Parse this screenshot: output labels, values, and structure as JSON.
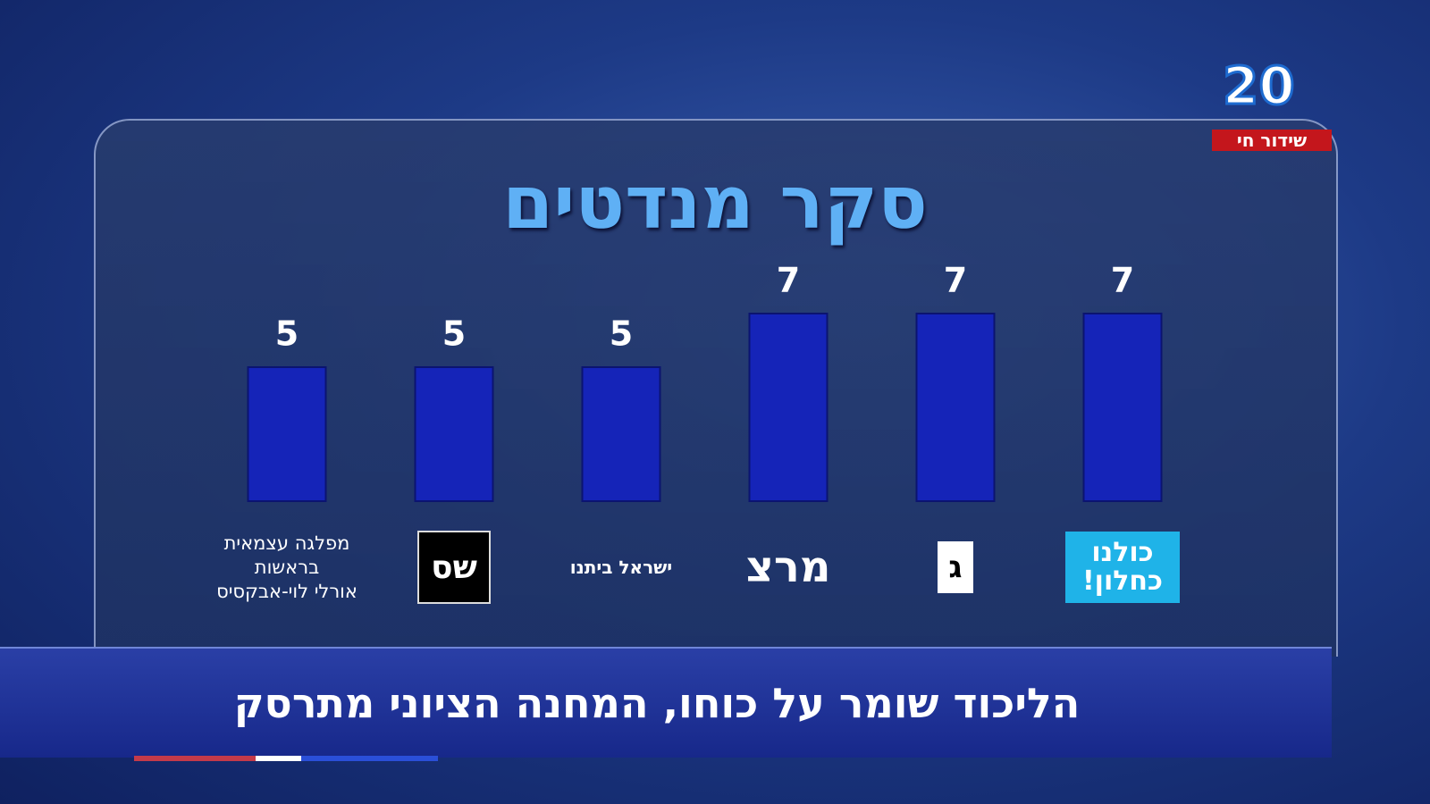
{
  "channel": {
    "logo": "20",
    "live": "שידור חי"
  },
  "chart_data": {
    "type": "bar",
    "title": "סקר מנדטים",
    "categories": [
      "כולנו כחלון!",
      "ג",
      "מרצ",
      "ישראל ביתנו",
      "שס",
      "מפלגה עצמאית\nבראשות\nאורלי לוי-אבקסיס"
    ],
    "values": [
      7,
      7,
      7,
      5,
      5,
      5
    ],
    "color": "#1524b8"
  },
  "ticker": {
    "headline": "הליכוד שומר על כוחו, המחנה הציוני מתרסק"
  }
}
